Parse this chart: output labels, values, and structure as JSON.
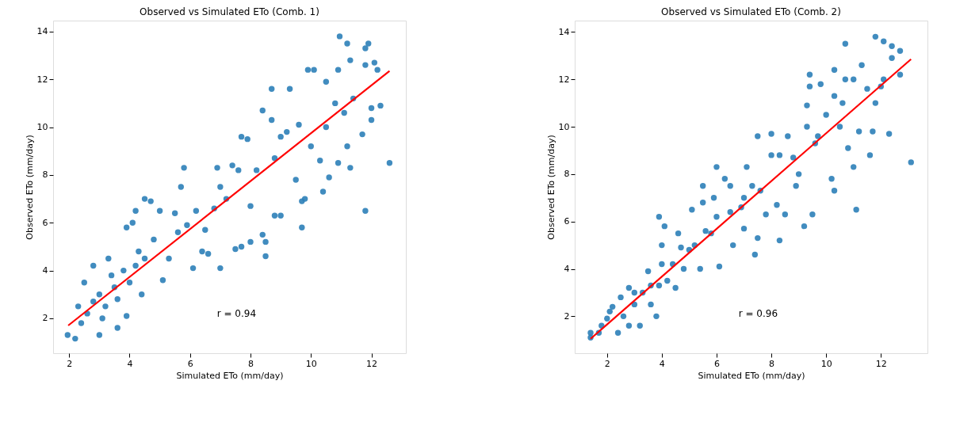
{
  "chart_data": [
    {
      "type": "scatter",
      "title": "Observed vs Simulated ETo (Comb. 1)",
      "xlabel": "Simulated ETo (mm/day)",
      "ylabel": "Observed ETo (mm/day)",
      "xlim": [
        1.47,
        13.14
      ],
      "ylim": [
        0.54,
        14.46
      ],
      "xticks": [
        2,
        4,
        6,
        8,
        10,
        12
      ],
      "yticks": [
        2,
        4,
        6,
        8,
        10,
        12,
        14
      ],
      "grid": false,
      "legend": false,
      "annotations": [
        "r = 0.94"
      ],
      "series": [
        {
          "type": "scatter",
          "marker": "circle",
          "color": "#2c7fb8",
          "x": [
            1.95,
            2.2,
            2.3,
            2.5,
            2.8,
            3.0,
            3.6,
            3.9,
            4.4,
            4.5,
            4.7,
            4.2,
            5.1,
            5.0,
            5.5,
            5.8,
            5.7,
            6.1,
            6.4,
            6.6,
            6.9,
            7.0,
            7.0,
            7.5,
            7.4,
            7.7,
            7.7,
            7.9,
            8.0,
            8.0,
            8.4,
            8.5,
            8.5,
            8.7,
            8.4,
            8.7,
            8.8,
            9.0,
            9.0,
            9.3,
            9.5,
            9.7,
            9.7,
            9.8,
            9.9,
            10.1,
            10.0,
            10.3,
            10.4,
            10.5,
            10.6,
            10.9,
            10.9,
            10.95,
            11.2,
            11.3,
            11.1,
            11.2,
            11.3,
            11.8,
            11.7,
            11.8,
            11.8,
            11.9,
            12.1,
            12.0,
            12.0,
            12.3,
            12.6,
            12.2,
            9.2,
            8.2,
            7.2,
            6.2,
            6.5,
            5.6,
            4.8,
            5.3,
            4.3,
            3.5,
            3.2,
            3.8,
            4.0,
            3.0,
            2.6,
            3.3,
            3.9,
            4.1,
            2.4,
            3.1,
            3.6,
            4.2,
            3.4,
            2.8,
            4.5,
            10.5,
            9.6,
            11.4,
            8.8,
            7.6,
            6.8,
            5.9,
            10.8
          ],
          "values": [
            1.3,
            1.15,
            2.5,
            3.5,
            4.2,
            1.3,
            1.6,
            2.1,
            3.0,
            7.0,
            6.9,
            6.5,
            3.6,
            6.5,
            6.4,
            8.3,
            7.5,
            4.1,
            4.8,
            4.7,
            8.3,
            4.1,
            7.5,
            4.9,
            8.4,
            5.0,
            9.6,
            9.5,
            5.2,
            6.7,
            5.5,
            4.6,
            5.2,
            11.6,
            10.7,
            10.3,
            6.3,
            6.3,
            9.6,
            11.6,
            7.8,
            5.8,
            6.9,
            7.0,
            12.4,
            12.4,
            9.2,
            8.6,
            7.3,
            11.9,
            7.9,
            8.5,
            12.4,
            13.8,
            13.5,
            12.8,
            10.6,
            9.2,
            8.3,
            6.5,
            9.7,
            12.6,
            13.3,
            13.5,
            12.7,
            10.3,
            10.8,
            10.9,
            8.5,
            12.4,
            9.8,
            8.2,
            7.0,
            6.5,
            5.7,
            5.6,
            5.3,
            4.5,
            4.8,
            3.3,
            2.5,
            4.0,
            3.5,
            3.0,
            2.2,
            4.5,
            5.8,
            6.0,
            1.8,
            2.0,
            2.8,
            4.2,
            3.8,
            2.7,
            4.5,
            10.0,
            10.1,
            11.2,
            8.7,
            8.2,
            6.6,
            5.9,
            11.0
          ]
        },
        {
          "type": "line",
          "marker": "none",
          "line_style": "solid",
          "color": "#ff0000",
          "x": [
            1.97,
            12.6
          ],
          "values": [
            1.7,
            12.35
          ]
        }
      ]
    },
    {
      "type": "scatter",
      "title": "Observed vs Simulated ETo (Comb. 2)",
      "xlabel": "Simulated ETo (mm/day)",
      "ylabel": "Observed ETo (mm/day)",
      "xlim": [
        0.82,
        13.7
      ],
      "ylim": [
        0.44,
        14.48
      ],
      "xticks": [
        2,
        4,
        6,
        8,
        10,
        12
      ],
      "yticks": [
        2,
        4,
        6,
        8,
        10,
        12,
        14
      ],
      "grid": false,
      "legend": false,
      "annotations": [
        "r = 0.96"
      ],
      "series": [
        {
          "type": "scatter",
          "marker": "circle",
          "color": "#2c7fb8",
          "x": [
            1.4,
            1.4,
            1.7,
            1.8,
            2.0,
            2.2,
            2.4,
            2.5,
            2.8,
            2.8,
            3.0,
            3.2,
            3.3,
            3.5,
            3.6,
            3.8,
            3.9,
            4.0,
            4.2,
            4.0,
            3.9,
            4.1,
            4.5,
            4.6,
            4.8,
            5.0,
            5.1,
            5.4,
            5.5,
            5.5,
            5.8,
            5.9,
            6.0,
            6.0,
            6.1,
            6.3,
            6.5,
            6.6,
            6.9,
            7.0,
            7.1,
            7.4,
            7.5,
            7.3,
            7.5,
            7.8,
            8.0,
            8.0,
            8.2,
            8.3,
            8.3,
            8.5,
            8.6,
            8.9,
            9.2,
            9.0,
            9.3,
            9.3,
            9.4,
            9.5,
            9.4,
            9.8,
            9.7,
            10.0,
            10.3,
            10.3,
            10.2,
            10.3,
            10.6,
            10.7,
            10.7,
            10.8,
            11.1,
            11.0,
            11.0,
            11.2,
            11.3,
            11.7,
            11.6,
            11.8,
            11.8,
            12.1,
            12.1,
            12.4,
            12.3,
            12.4,
            12.7,
            12.7,
            13.1,
            12.0,
            10.5,
            8.8,
            7.6,
            6.5,
            5.2,
            4.4,
            3.0,
            2.1,
            2.6,
            3.6,
            4.7,
            5.6,
            7.0,
            9.6,
            11.5
          ],
          "values": [
            1.3,
            1.1,
            1.3,
            1.6,
            1.9,
            2.4,
            1.3,
            2.8,
            3.2,
            1.6,
            2.5,
            1.6,
            3.0,
            3.9,
            2.5,
            2.0,
            3.3,
            4.2,
            3.5,
            5.0,
            6.2,
            5.8,
            3.2,
            5.5,
            4.0,
            4.8,
            6.5,
            4.0,
            7.5,
            6.8,
            5.5,
            7.0,
            6.2,
            8.3,
            4.1,
            7.8,
            7.5,
            5.0,
            6.6,
            5.7,
            8.3,
            4.6,
            5.3,
            7.5,
            9.6,
            6.3,
            9.7,
            8.8,
            6.7,
            8.8,
            5.2,
            6.3,
            9.6,
            7.5,
            5.8,
            8.0,
            10.0,
            10.9,
            12.2,
            6.3,
            11.7,
            11.8,
            9.6,
            10.5,
            11.3,
            7.3,
            7.8,
            12.4,
            11.0,
            13.5,
            12.0,
            9.1,
            6.5,
            8.3,
            12.0,
            9.8,
            12.6,
            9.8,
            8.8,
            13.8,
            11.0,
            13.6,
            12.0,
            13.4,
            9.7,
            12.9,
            13.2,
            12.2,
            8.5,
            11.7,
            10.0,
            8.7,
            7.3,
            6.4,
            5.0,
            4.2,
            3.0,
            2.2,
            2.0,
            3.3,
            4.9,
            5.6,
            7.0,
            9.3,
            11.6
          ]
        },
        {
          "type": "line",
          "marker": "none",
          "line_style": "solid",
          "color": "#ff0000",
          "x": [
            1.4,
            13.1
          ],
          "values": [
            1.05,
            12.85
          ]
        }
      ]
    }
  ]
}
